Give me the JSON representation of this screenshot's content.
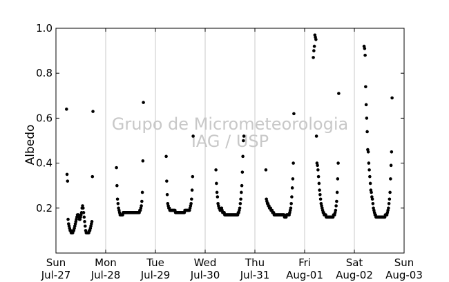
{
  "chart_data": {
    "type": "scatter",
    "title": "",
    "xlabel": "",
    "ylabel": "Albedo",
    "ylim": [
      0,
      1.0
    ],
    "xlim": [
      "2014-07-27",
      "2014-08-03"
    ],
    "grid": "vertical",
    "x_ticks": [
      {
        "date": "2014-07-27",
        "label1": "Sun",
        "label2": "Jul-27"
      },
      {
        "date": "2014-07-28",
        "label1": "Mon",
        "label2": "Jul-28"
      },
      {
        "date": "2014-07-29",
        "label1": "Tue",
        "label2": "Jul-29"
      },
      {
        "date": "2014-07-30",
        "label1": "Wed",
        "label2": "Jul-30"
      },
      {
        "date": "2014-07-31",
        "label1": "Thu",
        "label2": "Jul-31"
      },
      {
        "date": "2014-08-01",
        "label1": "Fri",
        "label2": "Aug-01"
      },
      {
        "date": "2014-08-02",
        "label1": "Sat",
        "label2": "Aug-02"
      },
      {
        "date": "2014-08-03",
        "label1": "Sun",
        "label2": "Aug-03"
      }
    ],
    "y_ticks": [
      "0.2",
      "0.4",
      "0.6",
      "0.8",
      "1.0"
    ],
    "y_tick_values": [
      0.2,
      0.4,
      0.6,
      0.8,
      1.0
    ],
    "point_color": "#000000",
    "grid_color": "#c8c8c8",
    "daily_series": [
      {
        "date": "2014-07-27",
        "start_hour": 5.1,
        "step_hours": 0.25,
        "values": [
          0.64,
          0.35,
          0.32,
          0.15,
          0.13,
          0.12,
          0.11,
          0.1,
          0.1,
          0.09,
          0.09,
          0.09,
          0.09,
          0.1,
          0.1,
          0.11,
          0.12,
          0.13,
          0.14,
          0.15,
          0.16,
          0.17,
          0.17,
          0.17,
          0.16,
          0.15,
          0.15,
          0.16,
          0.17,
          0.18,
          0.2,
          0.21,
          0.2,
          0.18,
          0.16,
          0.14,
          0.12,
          0.1,
          0.09,
          0.09,
          0.09,
          0.09,
          0.09,
          0.09,
          0.1,
          0.1,
          0.11,
          0.12,
          0.13,
          0.14,
          0.34,
          0.63
        ]
      },
      {
        "date": "2014-07-28",
        "start_hour": 5.2,
        "step_hours": 0.25,
        "values": [
          0.38,
          0.3,
          0.24,
          0.22,
          0.2,
          0.19,
          0.18,
          0.17,
          0.17,
          0.17,
          0.17,
          0.17,
          0.17,
          0.18,
          0.18,
          0.18,
          0.18,
          0.18,
          0.18,
          0.18,
          0.18,
          0.18,
          0.18,
          0.18,
          0.18,
          0.18,
          0.18,
          0.18,
          0.18,
          0.18,
          0.18,
          0.18,
          0.18,
          0.18,
          0.18,
          0.18,
          0.18,
          0.18,
          0.18,
          0.18,
          0.18,
          0.18,
          0.18,
          0.18,
          0.18,
          0.19,
          0.19,
          0.2,
          0.21,
          0.23,
          0.27,
          0.41,
          0.67
        ]
      },
      {
        "date": "2014-07-29",
        "start_hour": 5.2,
        "step_hours": 0.25,
        "values": [
          0.43,
          0.32,
          0.26,
          0.22,
          0.21,
          0.2,
          0.2,
          0.19,
          0.19,
          0.19,
          0.19,
          0.19,
          0.19,
          0.19,
          0.19,
          0.19,
          0.19,
          0.19,
          0.18,
          0.18,
          0.18,
          0.18,
          0.18,
          0.18,
          0.18,
          0.18,
          0.18,
          0.18,
          0.18,
          0.18,
          0.18,
          0.18,
          0.18,
          0.18,
          0.18,
          0.18,
          0.19,
          0.19,
          0.19,
          0.19,
          0.19,
          0.19,
          0.19,
          0.19,
          0.19,
          0.19,
          0.2,
          0.21,
          0.22,
          0.24,
          0.28,
          0.34,
          0.52
        ]
      },
      {
        "date": "2014-07-30",
        "start_hour": 5.2,
        "step_hours": 0.25,
        "values": [
          0.37,
          0.31,
          0.27,
          0.25,
          0.22,
          0.21,
          0.2,
          0.2,
          0.19,
          0.19,
          0.19,
          0.2,
          0.19,
          0.18,
          0.18,
          0.18,
          0.18,
          0.17,
          0.17,
          0.17,
          0.17,
          0.17,
          0.17,
          0.17,
          0.17,
          0.17,
          0.17,
          0.17,
          0.17,
          0.17,
          0.17,
          0.17,
          0.17,
          0.17,
          0.17,
          0.17,
          0.17,
          0.17,
          0.17,
          0.17,
          0.17,
          0.17,
          0.17,
          0.18,
          0.18,
          0.19,
          0.2,
          0.22,
          0.24,
          0.27,
          0.3,
          0.36,
          0.43,
          0.5,
          0.52
        ]
      },
      {
        "date": "2014-07-31",
        "start_hour": 5.3,
        "step_hours": 0.25,
        "values": [
          0.37,
          0.24,
          0.23,
          0.22,
          0.22,
          0.21,
          0.21,
          0.2,
          0.2,
          0.2,
          0.19,
          0.19,
          0.19,
          0.18,
          0.18,
          0.18,
          0.17,
          0.17,
          0.17,
          0.17,
          0.17,
          0.17,
          0.17,
          0.17,
          0.17,
          0.17,
          0.17,
          0.17,
          0.17,
          0.17,
          0.17,
          0.17,
          0.17,
          0.17,
          0.17,
          0.17,
          0.16,
          0.16,
          0.16,
          0.16,
          0.17,
          0.17,
          0.17,
          0.17,
          0.17,
          0.17,
          0.18,
          0.19,
          0.2,
          0.22,
          0.25,
          0.29,
          0.33,
          0.4,
          0.62
        ]
      },
      {
        "date": "2014-08-01",
        "start_hour": 4.2,
        "step_hours": 0.25,
        "values": [
          0.87,
          0.9,
          0.92,
          0.97,
          0.96,
          0.95,
          0.52,
          0.4,
          0.39,
          0.37,
          0.34,
          0.31,
          0.28,
          0.26,
          0.24,
          0.22,
          0.21,
          0.2,
          0.19,
          0.18,
          0.18,
          0.17,
          0.17,
          0.17,
          0.17,
          0.16,
          0.16,
          0.16,
          0.16,
          0.16,
          0.16,
          0.16,
          0.16,
          0.16,
          0.16,
          0.16,
          0.16,
          0.16,
          0.16,
          0.17,
          0.17,
          0.17,
          0.18,
          0.19,
          0.21,
          0.23,
          0.27,
          0.33,
          0.4,
          0.71
        ]
      },
      {
        "date": "2014-08-02",
        "start_hour": 4.7,
        "step_hours": 0.25,
        "values": [
          0.92,
          0.91,
          0.88,
          0.74,
          0.66,
          0.6,
          0.54,
          0.46,
          0.45,
          0.4,
          0.37,
          0.34,
          0.31,
          0.28,
          0.27,
          0.25,
          0.24,
          0.22,
          0.2,
          0.19,
          0.18,
          0.17,
          0.17,
          0.16,
          0.16,
          0.16,
          0.16,
          0.16,
          0.16,
          0.16,
          0.16,
          0.16,
          0.16,
          0.16,
          0.16,
          0.16,
          0.16,
          0.16,
          0.16,
          0.16,
          0.16,
          0.17,
          0.17,
          0.17,
          0.17,
          0.18,
          0.19,
          0.2,
          0.22,
          0.24,
          0.27,
          0.33,
          0.39,
          0.45,
          0.69
        ]
      }
    ]
  },
  "watermark": {
    "line1": "Grupo de Micrometeorologia",
    "line2": "IAG / USP"
  }
}
